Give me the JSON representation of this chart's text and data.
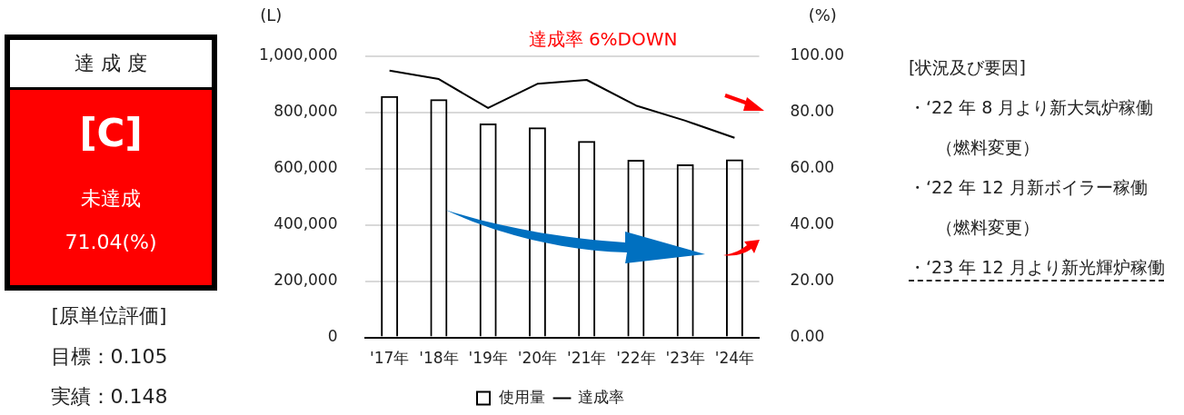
{
  "chart_data": {
    "type": "bar",
    "title": "達成率 6%DOWN",
    "ylabel": "(L)",
    "y2label": "(%)",
    "categories": [
      "'17年",
      "'18年",
      "'19年",
      "'20年",
      "'21年",
      "'22年",
      "'23年",
      "'24年"
    ],
    "series": [
      {
        "name": "使用量",
        "color": "#000000",
        "values": [
          859000,
          847000,
          761000,
          747000,
          699000,
          632000,
          616000,
          633000
        ]
      },
      {
        "name": "達成率",
        "type": "line",
        "axis": "y2",
        "color": "#000000",
        "values": [
          94.9,
          91.9,
          81.6,
          90.2,
          91.6,
          82.5,
          77.1,
          71.0
        ]
      }
    ],
    "ylim": [
      0,
      1000000
    ],
    "yticks": [
      {
        "value": 0,
        "label": "0"
      },
      {
        "value": 200000,
        "label": "200,000"
      },
      {
        "value": 400000,
        "label": "400,000"
      },
      {
        "value": 600000,
        "label": "600,000"
      },
      {
        "value": 800000,
        "label": "800,000"
      },
      {
        "value": 1000000,
        "label": "1,000,000"
      }
    ],
    "y2lim": [
      0,
      100
    ],
    "y2ticks": [
      {
        "value": 0,
        "label": "0.00"
      },
      {
        "value": 20,
        "label": "20.00"
      },
      {
        "value": 40,
        "label": "40.00"
      },
      {
        "value": 60,
        "label": "60.00"
      },
      {
        "value": 80,
        "label": "80.00"
      },
      {
        "value": 100,
        "label": "100.00"
      }
    ],
    "grid": "y",
    "legend": "bottom",
    "marker": "none",
    "line_style": "solid",
    "annotations": [
      "達 成 度",
      "[C]",
      "未達成",
      "71.04(%)",
      "[原単位評価]",
      "目標：0.105",
      "実績：0.148",
      "[状況及び要因]",
      "・‘22 年 8 月より新大気炉稼働（燃料変更）",
      "・‘22 年 12 月新ボイラー稼働（燃料変更）",
      "・‘23 年 12 月より新光輝炉稼働"
    ]
  }
}
